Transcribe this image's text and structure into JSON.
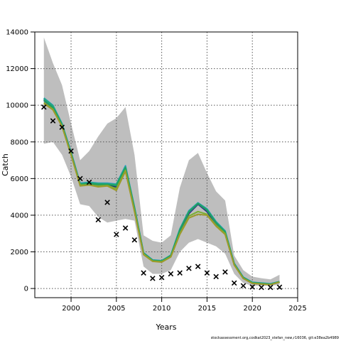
{
  "footer": "stockassessment.org,codkat2023_stefan_new,r16036, git:e38ea2b4989",
  "chart_data": {
    "type": "line",
    "title": "",
    "xlabel": "Years",
    "ylabel": "Catch",
    "xlim": [
      1996,
      2025
    ],
    "ylim": [
      -500,
      14000
    ],
    "xticks": [
      2000,
      2005,
      2010,
      2015,
      2020,
      2025
    ],
    "yticks": [
      0,
      2000,
      4000,
      6000,
      8000,
      10000,
      12000,
      14000
    ],
    "grid": true,
    "x": [
      1997,
      1998,
      1999,
      2000,
      2001,
      2002,
      2003,
      2004,
      2005,
      2006,
      2007,
      2008,
      2009,
      2010,
      2011,
      2012,
      2013,
      2014,
      2015,
      2016,
      2017,
      2018,
      2019,
      2020,
      2021,
      2022,
      2023
    ],
    "band": {
      "name": "confidence interval",
      "color": "#bebebe",
      "upper": [
        13700,
        12300,
        11100,
        9000,
        7000,
        7500,
        8300,
        9000,
        9300,
        9900,
        7300,
        2900,
        2600,
        2500,
        2900,
        5500,
        7000,
        7400,
        6300,
        5300,
        4800,
        1800,
        1000,
        650,
        560,
        500,
        750
      ],
      "lower": [
        7900,
        8000,
        7300,
        6100,
        4600,
        4500,
        3900,
        3600,
        3700,
        3800,
        3700,
        1200,
        800,
        800,
        1000,
        2000,
        2500,
        2700,
        2500,
        2300,
        1900,
        800,
        300,
        150,
        150,
        150,
        200
      ]
    },
    "series": [
      {
        "color": "#1b2a6b",
        "values": [
          10300,
          9900,
          8900,
          7400,
          5650,
          5700,
          5600,
          5650,
          5550,
          6500,
          4300,
          1900,
          1500,
          1450,
          1750,
          3100,
          4100,
          4600,
          4200,
          3500,
          3000,
          1300,
          550,
          280,
          240,
          210,
          350
        ]
      },
      {
        "color": "#3d4fa8",
        "values": [
          10250,
          9850,
          8950,
          7350,
          5700,
          5750,
          5650,
          5700,
          5600,
          6550,
          4350,
          1900,
          1550,
          1480,
          1780,
          3150,
          4150,
          4620,
          4250,
          3550,
          3050,
          1320,
          580,
          300,
          260,
          220,
          360
        ]
      },
      {
        "color": "#2a6fb8",
        "values": [
          10350,
          9950,
          8950,
          7400,
          5700,
          5750,
          5700,
          5700,
          5650,
          6600,
          4400,
          1950,
          1550,
          1500,
          1800,
          3200,
          4200,
          4650,
          4300,
          3600,
          3100,
          1350,
          600,
          320,
          280,
          240,
          370
        ]
      },
      {
        "color": "#2f9acf",
        "values": [
          10400,
          10000,
          9000,
          7450,
          5750,
          5800,
          5750,
          5750,
          5700,
          6700,
          4450,
          1950,
          1560,
          1520,
          1820,
          3250,
          4250,
          4680,
          4350,
          3650,
          3150,
          1380,
          620,
          340,
          300,
          260,
          380
        ]
      },
      {
        "color": "#22a884",
        "values": [
          10380,
          9980,
          8980,
          7420,
          5720,
          5780,
          5730,
          5720,
          5680,
          6650,
          4420,
          1940,
          1540,
          1510,
          1810,
          3220,
          4220,
          4660,
          4320,
          3620,
          3120,
          1360,
          610,
          330,
          290,
          250,
          375
        ]
      },
      {
        "color": "#1fa15e",
        "values": [
          10280,
          9880,
          8920,
          7380,
          5680,
          5730,
          5680,
          5680,
          5620,
          6580,
          4380,
          1920,
          1530,
          1490,
          1790,
          3180,
          4180,
          4640,
          4280,
          3580,
          3080,
          1340,
          590,
          310,
          270,
          230,
          365
        ]
      },
      {
        "color": "#7ab032",
        "values": [
          10150,
          9780,
          8850,
          7300,
          5650,
          5650,
          5600,
          5620,
          5450,
          6450,
          4250,
          1880,
          1500,
          1460,
          1740,
          3000,
          3950,
          4200,
          4050,
          3450,
          3000,
          1300,
          560,
          290,
          250,
          215,
          355
        ]
      },
      {
        "color": "#9c9a2b",
        "values": [
          10100,
          9750,
          8850,
          7300,
          5600,
          5650,
          5550,
          5600,
          5350,
          6400,
          4200,
          1850,
          1480,
          1440,
          1720,
          2950,
          3850,
          4050,
          4000,
          3400,
          2950,
          1280,
          550,
          280,
          240,
          210,
          350
        ]
      }
    ],
    "observations": {
      "marker": "x",
      "color": "#000000",
      "values": [
        9900,
        9150,
        8800,
        7500,
        6000,
        5800,
        3750,
        4700,
        2950,
        3300,
        2650,
        850,
        550,
        600,
        800,
        850,
        1100,
        1200,
        850,
        650,
        900,
        300,
        150,
        80,
        60,
        60,
        70
      ]
    }
  }
}
